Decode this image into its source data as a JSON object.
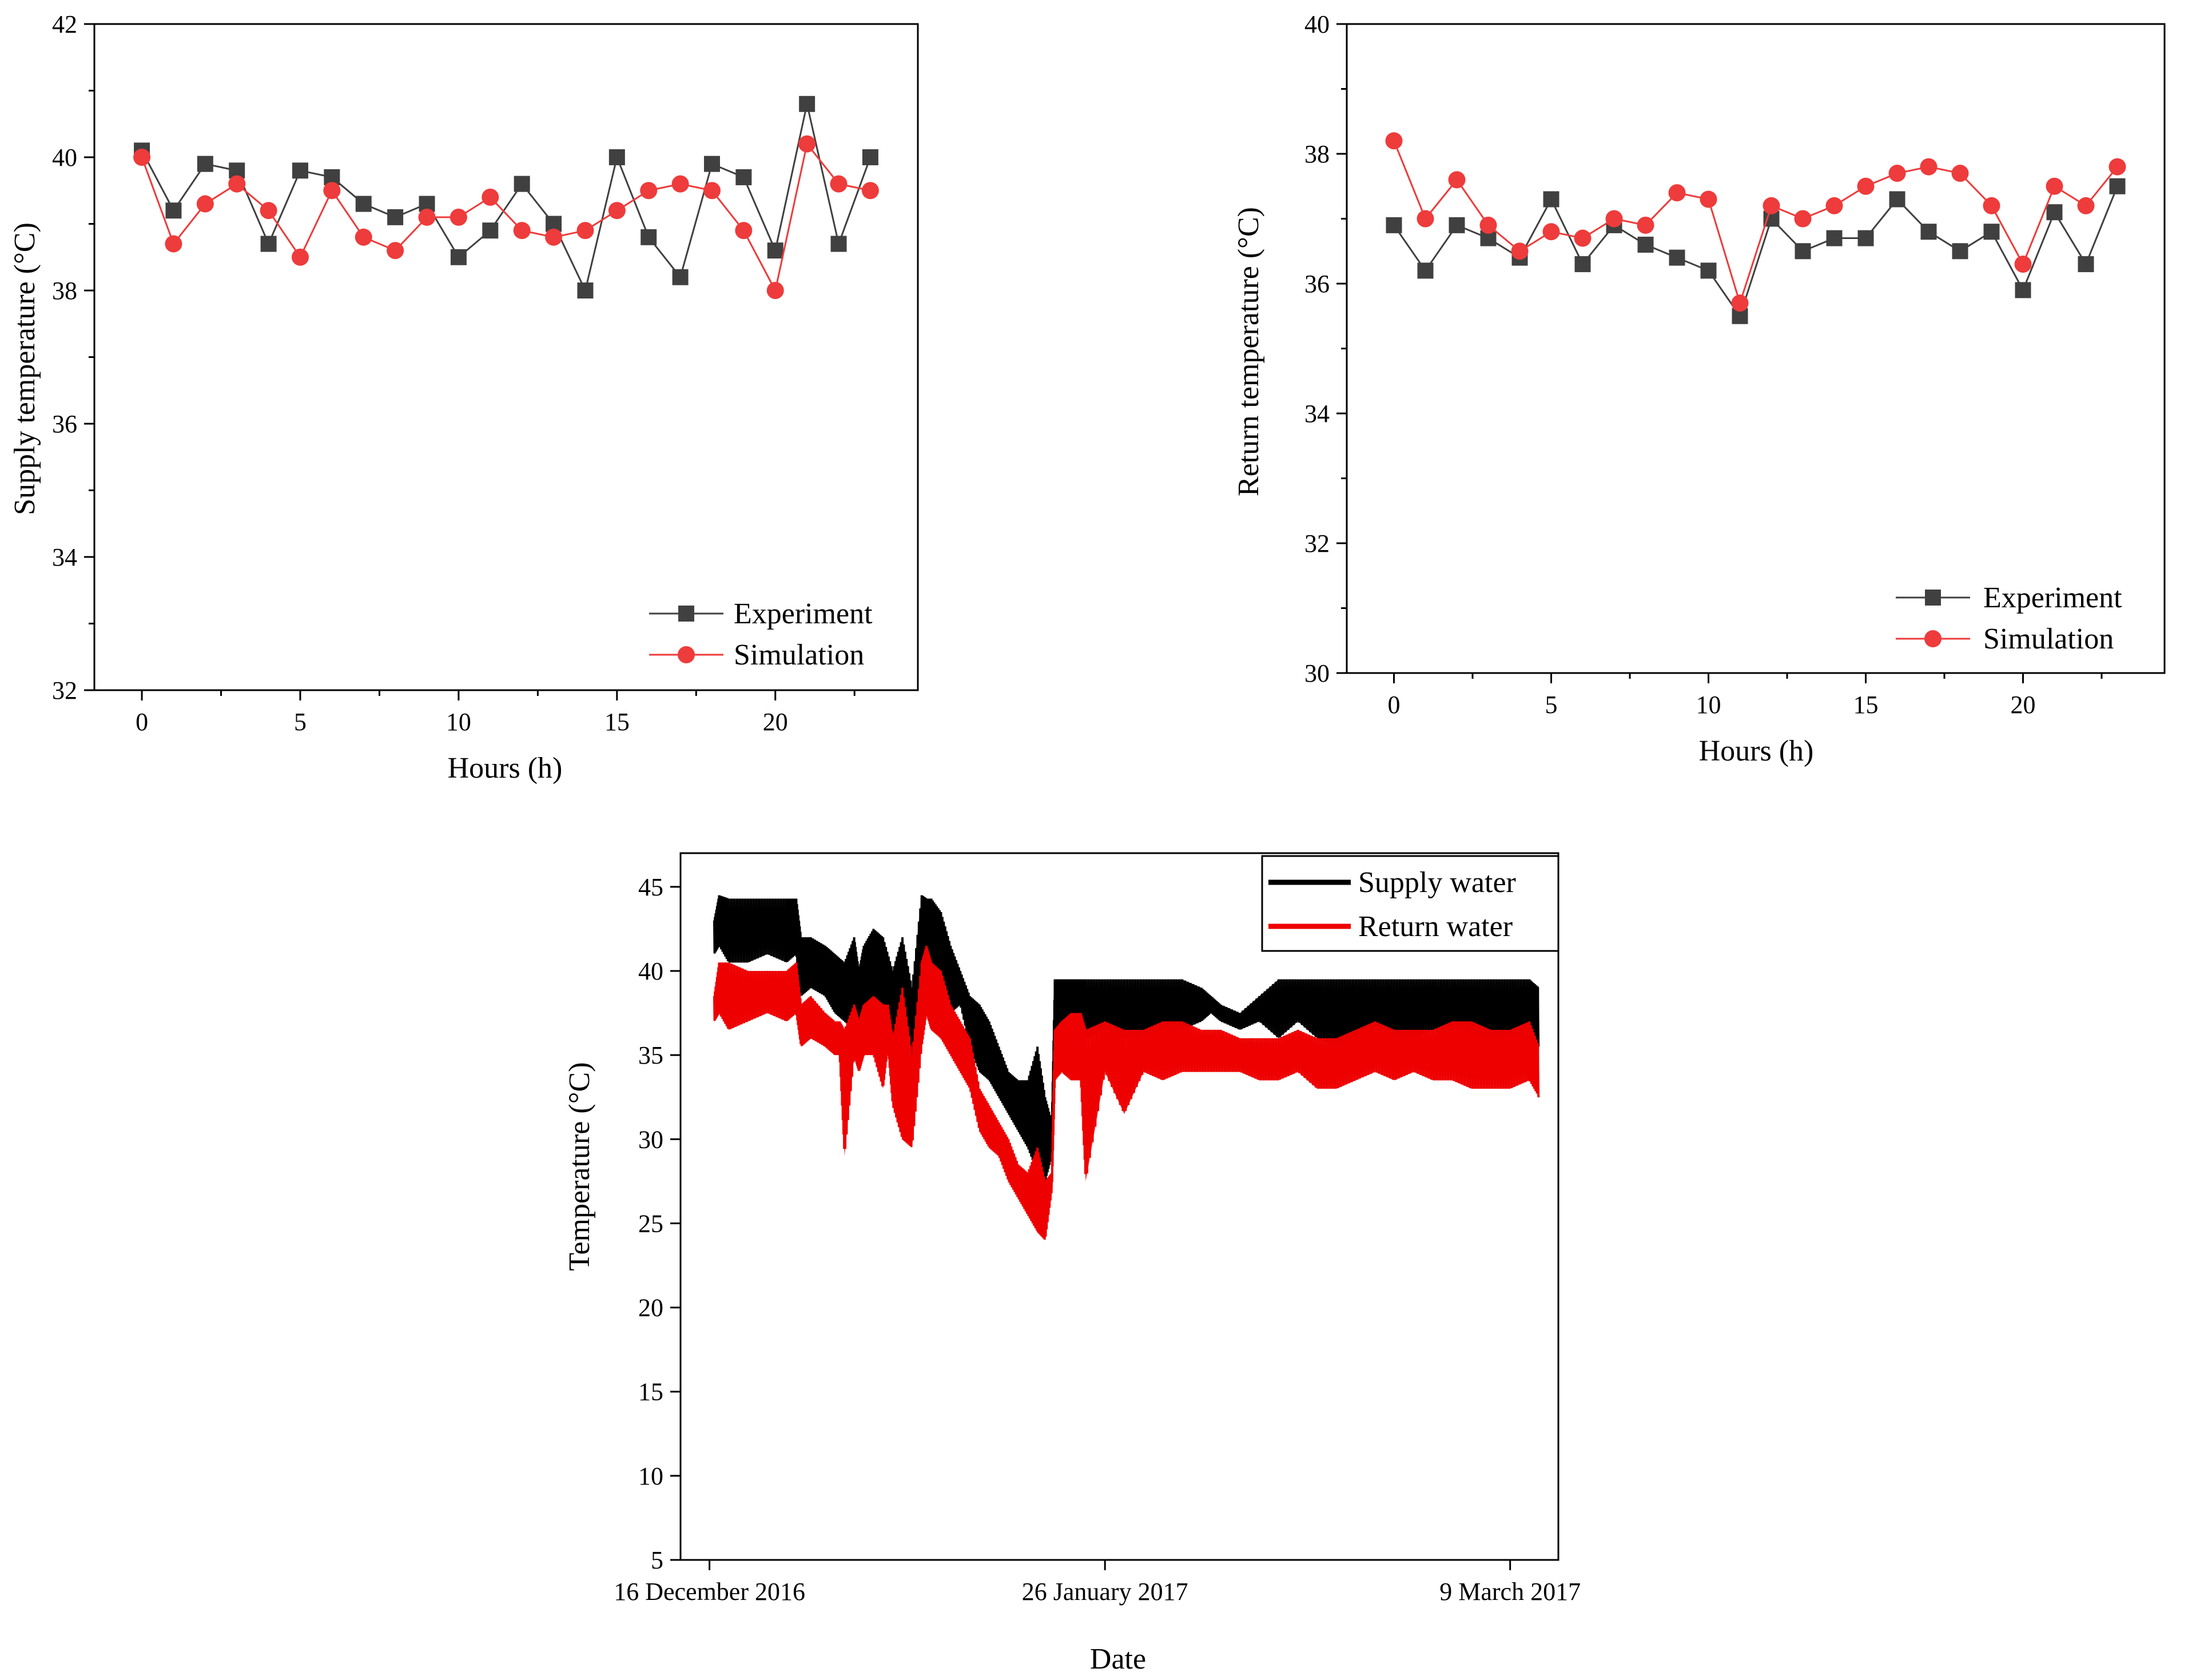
{
  "colors": {
    "experiment": "#404040",
    "simulation": "#ee3b3b",
    "supply_water": "#000000",
    "return_water": "#ee0000"
  },
  "chart_data": [
    {
      "type": "line",
      "id": "supply",
      "title": "",
      "xlabel": "Hours (h)",
      "ylabel": "Supply temperature (°C)",
      "xlim": [
        -1.5,
        24.5
      ],
      "ylim": [
        32,
        42
      ],
      "xticks": [
        0,
        5,
        10,
        15,
        20
      ],
      "yticks": [
        32,
        34,
        36,
        38,
        40,
        42
      ],
      "grid": false,
      "legend_position": "bottom-right",
      "x": [
        0,
        1,
        2,
        3,
        4,
        5,
        6,
        7,
        8,
        9,
        10,
        11,
        12,
        13,
        14,
        15,
        16,
        17,
        18,
        19,
        20,
        21,
        22,
        23
      ],
      "series": [
        {
          "name": "Experiment",
          "marker": "square",
          "values": [
            40.1,
            39.2,
            39.9,
            39.8,
            38.7,
            39.8,
            39.7,
            39.3,
            39.1,
            39.3,
            38.5,
            38.9,
            39.6,
            39.0,
            38.0,
            40.0,
            38.8,
            38.2,
            39.9,
            39.7,
            38.6,
            40.8,
            38.7,
            40.0
          ]
        },
        {
          "name": "Simulation",
          "marker": "circle",
          "values": [
            40.0,
            38.7,
            39.3,
            39.6,
            39.2,
            38.5,
            39.5,
            38.8,
            38.6,
            39.1,
            39.1,
            39.4,
            38.9,
            38.8,
            38.9,
            39.2,
            39.5,
            39.6,
            39.5,
            38.9,
            38.0,
            40.2,
            39.6,
            39.5
          ]
        }
      ]
    },
    {
      "type": "line",
      "id": "return",
      "title": "",
      "xlabel": "Hours (h)",
      "ylabel": "Return temperature (°C)",
      "xlim": [
        -1.5,
        24.5
      ],
      "ylim": [
        30,
        40
      ],
      "xticks": [
        0,
        5,
        10,
        15,
        20
      ],
      "yticks": [
        30,
        32,
        34,
        36,
        38,
        40
      ],
      "grid": false,
      "legend_position": "bottom-right",
      "x": [
        0,
        1,
        2,
        3,
        4,
        5,
        6,
        7,
        8,
        9,
        10,
        11,
        12,
        13,
        14,
        15,
        16,
        17,
        18,
        19,
        20,
        21,
        22,
        23
      ],
      "series": [
        {
          "name": "Experiment",
          "marker": "square",
          "values": [
            36.9,
            36.2,
            36.9,
            36.7,
            36.4,
            37.3,
            36.3,
            36.9,
            36.6,
            36.4,
            36.2,
            35.5,
            37.0,
            36.5,
            36.7,
            36.7,
            37.3,
            36.8,
            36.5,
            36.8,
            35.9,
            37.1,
            36.3,
            37.5
          ]
        },
        {
          "name": "Simulation",
          "marker": "circle",
          "values": [
            38.2,
            37.0,
            37.6,
            36.9,
            36.5,
            36.8,
            36.7,
            37.0,
            36.9,
            37.4,
            37.3,
            35.7,
            37.2,
            37.0,
            37.2,
            37.5,
            37.7,
            37.8,
            37.7,
            37.2,
            36.3,
            37.5,
            37.2,
            37.8
          ]
        }
      ]
    },
    {
      "type": "line",
      "id": "seasonal",
      "title": "",
      "xlabel": "Date",
      "ylabel": "Temperature (°C)",
      "x_units": "days since 16 December 2016",
      "xlim": [
        -3,
        88
      ],
      "ylim": [
        5,
        47
      ],
      "xticks": [
        0,
        41,
        83
      ],
      "xtick_labels": [
        "16 December 2016",
        "26 January 2017",
        "9 March 2017"
      ],
      "yticks": [
        5,
        10,
        15,
        20,
        25,
        30,
        35,
        40,
        45
      ],
      "grid": false,
      "legend_position": "top-right",
      "series": [
        {
          "name": "Supply water",
          "x": [
            0.5,
            1.0,
            2.0,
            4.0,
            6.0,
            8.0,
            9.0,
            9.5,
            10.5,
            12.0,
            13.0,
            14.0,
            15.0,
            15.5,
            16.0,
            17.0,
            18.0,
            19.0,
            20.0,
            21.0,
            22.0,
            22.5,
            23.0,
            24.0,
            25.0,
            26.0,
            27.0,
            28.0,
            29.0,
            30.0,
            31.0,
            32.0,
            33.0,
            34.0,
            34.8,
            35.5,
            35.8,
            36.5,
            37.5,
            39.0,
            41.0,
            43.0,
            45.0,
            47.0,
            49.0,
            51.0,
            52.0,
            53.0,
            55.0,
            57.0,
            59.0,
            61.0,
            63.0,
            65.0,
            67.0,
            69.0,
            71.0,
            73.0,
            75.0,
            77.0,
            79.0,
            81.0,
            83.0,
            85.0,
            86.0
          ],
          "low": [
            41.0,
            41.5,
            40.5,
            40.5,
            41.0,
            40.5,
            41.0,
            38.5,
            39.0,
            38.5,
            37.5,
            37.0,
            36.5,
            37.0,
            36.0,
            37.0,
            37.0,
            35.0,
            34.0,
            33.5,
            39.0,
            41.0,
            40.0,
            39.0,
            37.5,
            38.0,
            35.5,
            34.0,
            33.5,
            32.5,
            31.5,
            30.5,
            29.5,
            28.0,
            27.5,
            29.0,
            35.5,
            36.0,
            35.5,
            36.0,
            36.5,
            36.0,
            36.0,
            36.5,
            36.5,
            37.0,
            37.5,
            37.0,
            36.5,
            37.0,
            36.0,
            37.0,
            36.0,
            35.5,
            36.0,
            36.0,
            35.5,
            36.0,
            36.5,
            36.0,
            36.0,
            35.5,
            35.5,
            36.0,
            35.5
          ],
          "high": [
            43.0,
            44.5,
            44.3,
            44.3,
            44.3,
            44.3,
            44.3,
            42.0,
            42.0,
            41.5,
            41.0,
            40.5,
            42.0,
            40.0,
            41.5,
            42.5,
            42.0,
            40.0,
            42.0,
            39.0,
            44.5,
            44.3,
            44.3,
            43.5,
            41.5,
            40.0,
            38.5,
            38.0,
            37.0,
            35.5,
            34.0,
            33.5,
            33.5,
            35.5,
            32.5,
            31.0,
            39.5,
            39.5,
            39.5,
            39.5,
            39.5,
            39.5,
            39.5,
            39.5,
            39.5,
            39.0,
            38.5,
            38.0,
            37.5,
            38.5,
            39.5,
            39.5,
            39.5,
            39.5,
            39.5,
            39.5,
            39.5,
            39.5,
            39.5,
            39.5,
            39.5,
            39.5,
            39.5,
            39.5,
            39.0
          ]
        },
        {
          "name": "Return water",
          "x": [
            0.5,
            1.0,
            2.0,
            4.0,
            6.0,
            8.0,
            9.0,
            9.5,
            10.5,
            12.0,
            13.0,
            13.5,
            14.0,
            15.0,
            15.5,
            16.0,
            17.0,
            18.0,
            18.5,
            19.0,
            20.0,
            21.0,
            22.0,
            22.5,
            23.0,
            24.0,
            25.0,
            26.0,
            27.0,
            28.0,
            29.0,
            30.0,
            31.0,
            32.0,
            33.0,
            34.0,
            34.8,
            35.5,
            35.8,
            36.5,
            37.5,
            38.5,
            39.0,
            41.0,
            43.0,
            45.0,
            47.0,
            49.0,
            51.0,
            53.0,
            55.0,
            57.0,
            59.0,
            61.0,
            63.0,
            65.0,
            67.0,
            69.0,
            71.0,
            73.0,
            75.0,
            77.0,
            79.0,
            81.0,
            83.0,
            85.0,
            86.0
          ],
          "low": [
            37.0,
            37.5,
            36.5,
            37.0,
            37.5,
            37.0,
            37.5,
            35.5,
            36.0,
            35.5,
            35.0,
            35.0,
            29.0,
            35.0,
            34.0,
            35.0,
            35.0,
            33.0,
            35.5,
            32.0,
            30.0,
            29.5,
            35.5,
            37.5,
            36.5,
            36.0,
            35.0,
            34.0,
            33.0,
            30.5,
            29.5,
            29.0,
            27.5,
            26.5,
            25.5,
            24.5,
            24.0,
            27.0,
            33.5,
            34.0,
            33.5,
            33.5,
            27.5,
            34.0,
            31.5,
            34.0,
            33.5,
            34.0,
            34.0,
            34.0,
            34.0,
            33.5,
            33.5,
            34.0,
            33.0,
            33.0,
            33.5,
            34.0,
            33.5,
            34.0,
            33.5,
            33.5,
            33.0,
            33.0,
            33.0,
            33.5,
            32.5
          ],
          "high": [
            38.5,
            40.5,
            40.5,
            40.0,
            40.0,
            40.0,
            40.5,
            38.0,
            38.5,
            37.5,
            37.0,
            37.0,
            36.5,
            38.0,
            37.0,
            38.0,
            38.5,
            38.0,
            38.0,
            36.0,
            39.0,
            35.0,
            40.5,
            41.5,
            40.5,
            40.0,
            38.0,
            37.0,
            36.0,
            33.0,
            32.0,
            31.0,
            30.0,
            28.5,
            28.0,
            29.5,
            27.5,
            28.0,
            36.5,
            37.0,
            37.5,
            37.5,
            36.5,
            37.0,
            36.5,
            36.5,
            37.0,
            37.0,
            36.5,
            36.5,
            36.0,
            36.0,
            36.0,
            36.5,
            36.0,
            36.0,
            36.5,
            37.0,
            36.5,
            36.5,
            36.5,
            37.0,
            37.0,
            36.5,
            36.5,
            37.0,
            35.5
          ]
        }
      ]
    }
  ]
}
